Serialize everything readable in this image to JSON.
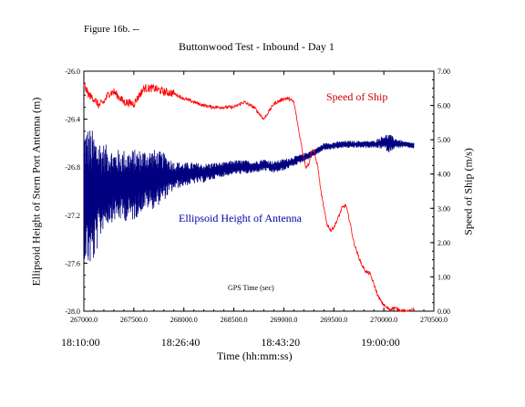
{
  "figure_label": "Figure 16b. --",
  "chart_data": {
    "type": "line",
    "title": "Buttonwood Test - Inbound - Day 1",
    "xlabel": "Time (hh:mm:ss)",
    "x_inner_label": "GPS Time (sec)",
    "ylabel_left": "Ellipsoid Height of Stern Port Antenna (m)",
    "ylabel_right": "Speed of Ship (m/s)",
    "xlim": [
      267000,
      270500
    ],
    "ylim_left": [
      -28.0,
      -26.0
    ],
    "ylim_right": [
      0.0,
      7.0
    ],
    "x_ticks": [
      "267000.0",
      "267500.0",
      "268000.0",
      "268500.0",
      "269000.0",
      "269500.0",
      "270000.0",
      "270500.0"
    ],
    "x_tick_values": [
      267000,
      267500,
      268000,
      268500,
      269000,
      269500,
      270000,
      270500
    ],
    "y_left_ticks": [
      "-26.0",
      "-26.4",
      "-26.8",
      "-27.2",
      "-27.6",
      "-28.0"
    ],
    "y_left_tick_values": [
      -26.0,
      -26.4,
      -26.8,
      -27.2,
      -27.6,
      -28.0
    ],
    "y_right_ticks": [
      "7.00",
      "6.00",
      "5.00",
      "4.00",
      "3.00",
      "2.00",
      "1.00",
      "0.00"
    ],
    "y_right_tick_values": [
      7,
      6,
      5,
      4,
      3,
      2,
      1,
      0
    ],
    "hms_labels": [
      {
        "text": "18:10:00",
        "x": 267000
      },
      {
        "text": "18:26:40",
        "x": 268000
      },
      {
        "text": "18:43:20",
        "x": 269000
      },
      {
        "text": "19:00:00",
        "x": 270000
      }
    ],
    "series": [
      {
        "name": "Speed of Ship",
        "axis": "right",
        "color": "#ff0000",
        "x": [
          267000,
          267050,
          267100,
          267150,
          267200,
          267250,
          267300,
          267400,
          267500,
          267600,
          267700,
          267800,
          267900,
          268000,
          268100,
          268200,
          268300,
          268400,
          268500,
          268600,
          268700,
          268800,
          268900,
          269000,
          269050,
          269100,
          269130,
          269160,
          269190,
          269220,
          269250,
          269280,
          269300,
          269340,
          269370,
          269400,
          269430,
          269470,
          269500,
          269540,
          269580,
          269620,
          269660,
          269700,
          269740,
          269780,
          269820,
          269860,
          269900,
          269940,
          269980,
          270020,
          270060,
          270100,
          270150,
          270200,
          270250,
          270300
        ],
        "y": [
          6.6,
          6.3,
          6.2,
          6.0,
          6.1,
          6.35,
          6.4,
          6.1,
          6.05,
          6.5,
          6.5,
          6.4,
          6.35,
          6.2,
          6.1,
          6.0,
          5.95,
          5.95,
          5.95,
          6.1,
          5.95,
          5.6,
          6.05,
          6.2,
          6.2,
          6.1,
          5.6,
          5.1,
          4.6,
          4.2,
          4.3,
          4.7,
          4.7,
          4.2,
          3.5,
          3.0,
          2.55,
          2.35,
          2.45,
          2.7,
          3.0,
          3.1,
          2.6,
          2.0,
          1.65,
          1.35,
          1.15,
          1.1,
          0.8,
          0.45,
          0.25,
          0.12,
          0.05,
          0.1,
          0.05,
          0.0,
          0.0,
          0.05
        ]
      },
      {
        "name": "Ellipsoid Height of Antenna",
        "axis": "left",
        "color": "#000080",
        "x": [
          267000,
          267050,
          267100,
          267150,
          267200,
          267300,
          267400,
          267500,
          267600,
          267700,
          267800,
          267900,
          268000,
          268100,
          268200,
          268300,
          268400,
          268500,
          268600,
          268700,
          268800,
          268900,
          269000,
          269100,
          269200,
          269300,
          269400,
          269500,
          269600,
          269700,
          269800,
          269900,
          270000,
          270050,
          270100,
          270200,
          270300
        ],
        "y": [
          -27.0,
          -27.05,
          -27.05,
          -27.0,
          -26.95,
          -26.95,
          -26.95,
          -26.95,
          -26.9,
          -26.9,
          -26.88,
          -26.87,
          -26.86,
          -26.85,
          -26.85,
          -26.83,
          -26.82,
          -26.8,
          -26.8,
          -26.8,
          -26.78,
          -26.8,
          -26.78,
          -26.75,
          -26.72,
          -26.68,
          -26.63,
          -26.62,
          -26.61,
          -26.61,
          -26.61,
          -26.61,
          -26.59,
          -26.6,
          -26.6,
          -26.61,
          -26.62
        ],
        "spread": [
          0.55,
          0.6,
          0.55,
          0.45,
          0.35,
          0.3,
          0.3,
          0.3,
          0.25,
          0.25,
          0.2,
          0.12,
          0.1,
          0.09,
          0.08,
          0.07,
          0.06,
          0.06,
          0.06,
          0.05,
          0.05,
          0.05,
          0.05,
          0.04,
          0.035,
          0.03,
          0.03,
          0.03,
          0.03,
          0.03,
          0.03,
          0.03,
          0.06,
          0.08,
          0.05,
          0.025,
          0.025
        ]
      }
    ]
  }
}
